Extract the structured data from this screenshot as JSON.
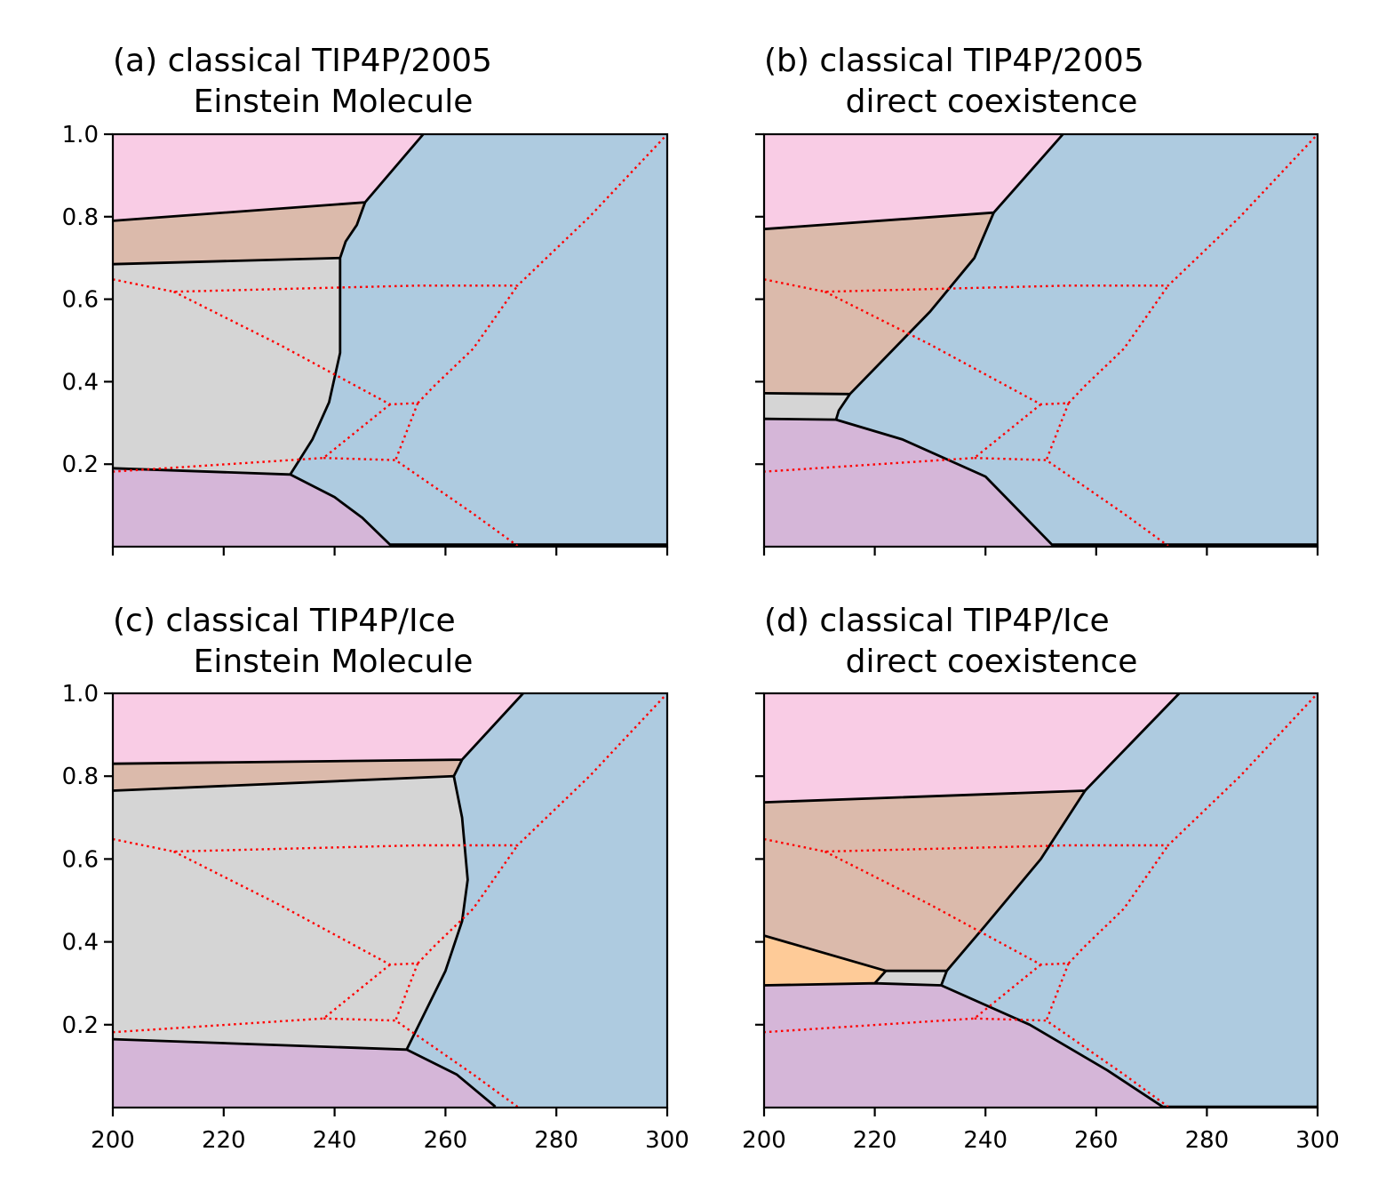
{
  "colors": {
    "pink": "#f9cce5",
    "tan": "#dbbaab",
    "gray": "#d5d5d5",
    "purple": "#d5b6d8",
    "blue": "#aecbe0",
    "orange": "#fecb98",
    "boundary": "#000000",
    "reference": "#ff0000"
  },
  "reference_lines": [
    [
      [
        200,
        0.648
      ],
      [
        211,
        0.618
      ],
      [
        240,
        0.628
      ],
      [
        255,
        0.633
      ],
      [
        273,
        0.633
      ],
      [
        286,
        0.8
      ],
      [
        300,
        1.0
      ]
    ],
    [
      [
        211,
        0.618
      ],
      [
        230,
        0.49
      ],
      [
        250,
        0.345
      ],
      [
        255,
        0.348
      ]
    ],
    [
      [
        255,
        0.348
      ],
      [
        258,
        0.39
      ],
      [
        265,
        0.48
      ],
      [
        273,
        0.633
      ]
    ],
    [
      [
        255,
        0.348
      ],
      [
        251,
        0.21
      ]
    ],
    [
      [
        250,
        0.345
      ],
      [
        238,
        0.215
      ],
      [
        200,
        0.182
      ]
    ],
    [
      [
        238,
        0.215
      ],
      [
        251,
        0.21
      ],
      [
        265,
        0.08
      ],
      [
        273,
        0.002
      ]
    ]
  ],
  "chart_data": [
    {
      "type": "phase-diagram",
      "title_line1": "(a) classical TIP4P/2005",
      "title_line2": "Einstein Molecule",
      "xlim": [
        200,
        300
      ],
      "ylim": [
        0,
        1.0
      ],
      "xticks": [
        200,
        220,
        240,
        260,
        280,
        300
      ],
      "yticks": [
        0.2,
        0.4,
        0.6,
        0.8,
        1.0
      ],
      "show_xticklabels": false,
      "show_yticklabels": true,
      "regions": [
        {
          "color": "pink",
          "points": [
            [
              200,
              1.0
            ],
            [
              256,
              1.0
            ],
            [
              245.5,
              0.835
            ],
            [
              200,
              0.79
            ]
          ]
        },
        {
          "color": "tan",
          "points": [
            [
              200,
              0.79
            ],
            [
              245.5,
              0.835
            ],
            [
              244,
              0.78
            ],
            [
              242,
              0.74
            ],
            [
              241,
              0.7
            ],
            [
              200,
              0.685
            ]
          ]
        },
        {
          "color": "gray",
          "points": [
            [
              200,
              0.685
            ],
            [
              241,
              0.7
            ],
            [
              241,
              0.47
            ],
            [
              239,
              0.35
            ],
            [
              236,
              0.26
            ],
            [
              232,
              0.175
            ],
            [
              200,
              0.19
            ]
          ]
        },
        {
          "color": "purple",
          "points": [
            [
              200,
              0.19
            ],
            [
              232,
              0.175
            ],
            [
              240,
              0.12
            ],
            [
              245,
              0.07
            ],
            [
              250,
              0.005
            ],
            [
              300,
              0.005
            ],
            [
              300,
              0
            ],
            [
              200,
              0
            ]
          ]
        },
        {
          "color": "blue",
          "points": [
            [
              256,
              1.0
            ],
            [
              300,
              1.0
            ],
            [
              300,
              0.005
            ],
            [
              250,
              0.005
            ],
            [
              245,
              0.07
            ],
            [
              240,
              0.12
            ],
            [
              232,
              0.175
            ],
            [
              236,
              0.26
            ],
            [
              239,
              0.35
            ],
            [
              241,
              0.47
            ],
            [
              241,
              0.7
            ],
            [
              242,
              0.74
            ],
            [
              244,
              0.78
            ],
            [
              245.5,
              0.835
            ]
          ]
        }
      ],
      "boundaries": [
        [
          [
            200,
            0.79
          ],
          [
            245.5,
            0.835
          ],
          [
            256,
            1.0
          ]
        ],
        [
          [
            200,
            0.685
          ],
          [
            241,
            0.7
          ]
        ],
        [
          [
            245.5,
            0.835
          ],
          [
            244,
            0.78
          ],
          [
            242,
            0.74
          ],
          [
            241,
            0.7
          ],
          [
            241,
            0.47
          ],
          [
            239,
            0.35
          ],
          [
            236,
            0.26
          ],
          [
            232,
            0.175
          ]
        ],
        [
          [
            200,
            0.19
          ],
          [
            232,
            0.175
          ],
          [
            240,
            0.12
          ],
          [
            245,
            0.07
          ],
          [
            250,
            0.005
          ],
          [
            300,
            0.005
          ]
        ]
      ]
    },
    {
      "type": "phase-diagram",
      "title_line1": "(b) classical TIP4P/2005",
      "title_line2": "direct coexistence",
      "xlim": [
        200,
        300
      ],
      "ylim": [
        0,
        1.0
      ],
      "xticks": [
        200,
        220,
        240,
        260,
        280,
        300
      ],
      "yticks": [
        0.2,
        0.4,
        0.6,
        0.8,
        1.0
      ],
      "show_xticklabels": false,
      "show_yticklabels": false,
      "regions": [
        {
          "color": "pink",
          "points": [
            [
              200,
              1.0
            ],
            [
              254,
              1.0
            ],
            [
              241.5,
              0.81
            ],
            [
              200,
              0.77
            ]
          ]
        },
        {
          "color": "tan",
          "points": [
            [
              200,
              0.77
            ],
            [
              241.5,
              0.81
            ],
            [
              238,
              0.7
            ],
            [
              230,
              0.57
            ],
            [
              215.5,
              0.37
            ],
            [
              200,
              0.372
            ]
          ]
        },
        {
          "color": "gray",
          "points": [
            [
              200,
              0.372
            ],
            [
              215.5,
              0.37
            ],
            [
              213.5,
              0.33
            ],
            [
              213,
              0.308
            ],
            [
              200,
              0.31
            ]
          ]
        },
        {
          "color": "purple",
          "points": [
            [
              200,
              0.31
            ],
            [
              213,
              0.308
            ],
            [
              225,
              0.26
            ],
            [
              240,
              0.17
            ],
            [
              252,
              0.005
            ],
            [
              300,
              0.005
            ],
            [
              300,
              0
            ],
            [
              200,
              0
            ]
          ]
        },
        {
          "color": "blue",
          "points": [
            [
              254,
              1.0
            ],
            [
              300,
              1.0
            ],
            [
              300,
              0.005
            ],
            [
              252,
              0.005
            ],
            [
              240,
              0.17
            ],
            [
              225,
              0.26
            ],
            [
              213,
              0.308
            ],
            [
              213.5,
              0.33
            ],
            [
              215.5,
              0.37
            ],
            [
              230,
              0.57
            ],
            [
              238,
              0.7
            ],
            [
              241.5,
              0.81
            ]
          ]
        }
      ],
      "boundaries": [
        [
          [
            200,
            0.77
          ],
          [
            241.5,
            0.81
          ],
          [
            254,
            1.0
          ]
        ],
        [
          [
            241.5,
            0.81
          ],
          [
            238,
            0.7
          ],
          [
            230,
            0.57
          ],
          [
            215.5,
            0.37
          ],
          [
            213.5,
            0.33
          ],
          [
            213,
            0.308
          ]
        ],
        [
          [
            200,
            0.372
          ],
          [
            215.5,
            0.37
          ]
        ],
        [
          [
            200,
            0.31
          ],
          [
            213,
            0.308
          ],
          [
            225,
            0.26
          ],
          [
            240,
            0.17
          ],
          [
            252,
            0.005
          ],
          [
            300,
            0.005
          ]
        ]
      ]
    },
    {
      "type": "phase-diagram",
      "title_line1": "(c) classical TIP4P/Ice",
      "title_line2": "Einstein Molecule",
      "xlim": [
        200,
        300
      ],
      "ylim": [
        0,
        1.0
      ],
      "xticks": [
        200,
        220,
        240,
        260,
        280,
        300
      ],
      "yticks": [
        0.2,
        0.4,
        0.6,
        0.8,
        1.0
      ],
      "show_xticklabels": true,
      "show_yticklabels": true,
      "regions": [
        {
          "color": "pink",
          "points": [
            [
              200,
              1.0
            ],
            [
              274,
              1.0
            ],
            [
              263,
              0.84
            ],
            [
              200,
              0.83
            ]
          ]
        },
        {
          "color": "tan",
          "points": [
            [
              200,
              0.83
            ],
            [
              263,
              0.84
            ],
            [
              261.5,
              0.8
            ],
            [
              200,
              0.765
            ]
          ]
        },
        {
          "color": "gray",
          "points": [
            [
              200,
              0.765
            ],
            [
              261.5,
              0.8
            ],
            [
              263,
              0.7
            ],
            [
              264,
              0.55
            ],
            [
              263,
              0.45
            ],
            [
              260,
              0.33
            ],
            [
              253,
              0.14
            ],
            [
              200,
              0.165
            ]
          ]
        },
        {
          "color": "purple",
          "points": [
            [
              200,
              0.165
            ],
            [
              253,
              0.14
            ],
            [
              262,
              0.08
            ],
            [
              269,
              0.002
            ],
            [
              300,
              0.002
            ],
            [
              300,
              0
            ],
            [
              200,
              0
            ]
          ]
        },
        {
          "color": "blue",
          "points": [
            [
              274,
              1.0
            ],
            [
              300,
              1.0
            ],
            [
              300,
              0.002
            ],
            [
              269,
              0.002
            ],
            [
              262,
              0.08
            ],
            [
              253,
              0.14
            ],
            [
              260,
              0.33
            ],
            [
              263,
              0.45
            ],
            [
              264,
              0.55
            ],
            [
              263,
              0.7
            ],
            [
              261.5,
              0.8
            ],
            [
              263,
              0.84
            ]
          ]
        }
      ],
      "boundaries": [
        [
          [
            200,
            0.83
          ],
          [
            263,
            0.84
          ],
          [
            274,
            1.0
          ]
        ],
        [
          [
            200,
            0.765
          ],
          [
            261.5,
            0.8
          ]
        ],
        [
          [
            263,
            0.84
          ],
          [
            261.5,
            0.8
          ],
          [
            263,
            0.7
          ],
          [
            264,
            0.55
          ],
          [
            263,
            0.45
          ],
          [
            260,
            0.33
          ],
          [
            253,
            0.14
          ]
        ],
        [
          [
            200,
            0.165
          ],
          [
            253,
            0.14
          ],
          [
            262,
            0.08
          ],
          [
            269,
            0.002
          ]
        ]
      ]
    },
    {
      "type": "phase-diagram",
      "title_line1": "(d) classical TIP4P/Ice",
      "title_line2": "direct coexistence",
      "xlim": [
        200,
        300
      ],
      "ylim": [
        0,
        1.0
      ],
      "xticks": [
        200,
        220,
        240,
        260,
        280,
        300
      ],
      "yticks": [
        0.2,
        0.4,
        0.6,
        0.8,
        1.0
      ],
      "show_xticklabels": true,
      "show_yticklabels": false,
      "regions": [
        {
          "color": "pink",
          "points": [
            [
              200,
              1.0
            ],
            [
              275,
              1.0
            ],
            [
              258,
              0.765
            ],
            [
              200,
              0.737
            ]
          ]
        },
        {
          "color": "tan",
          "points": [
            [
              200,
              0.737
            ],
            [
              258,
              0.765
            ],
            [
              250,
              0.6
            ],
            [
              240,
              0.44
            ],
            [
              233,
              0.33
            ],
            [
              222,
              0.33
            ],
            [
              200,
              0.415
            ]
          ]
        },
        {
          "color": "orange",
          "points": [
            [
              200,
              0.415
            ],
            [
              222,
              0.33
            ],
            [
              220,
              0.3
            ],
            [
              200,
              0.295
            ]
          ]
        },
        {
          "color": "gray",
          "points": [
            [
              222,
              0.33
            ],
            [
              233,
              0.33
            ],
            [
              232,
              0.295
            ],
            [
              220,
              0.3
            ]
          ]
        },
        {
          "color": "purple",
          "points": [
            [
              200,
              0.295
            ],
            [
              220,
              0.3
            ],
            [
              232,
              0.295
            ],
            [
              248,
              0.2
            ],
            [
              262,
              0.09
            ],
            [
              272,
              0.002
            ],
            [
              300,
              0.002
            ],
            [
              300,
              0
            ],
            [
              200,
              0
            ]
          ]
        },
        {
          "color": "blue",
          "points": [
            [
              275,
              1.0
            ],
            [
              300,
              1.0
            ],
            [
              300,
              0.002
            ],
            [
              272,
              0.002
            ],
            [
              262,
              0.09
            ],
            [
              248,
              0.2
            ],
            [
              232,
              0.295
            ],
            [
              233,
              0.33
            ],
            [
              240,
              0.44
            ],
            [
              250,
              0.6
            ],
            [
              258,
              0.765
            ]
          ]
        }
      ],
      "boundaries": [
        [
          [
            200,
            0.737
          ],
          [
            258,
            0.765
          ],
          [
            275,
            1.0
          ]
        ],
        [
          [
            258,
            0.765
          ],
          [
            250,
            0.6
          ],
          [
            240,
            0.44
          ],
          [
            233,
            0.33
          ],
          [
            232,
            0.295
          ]
        ],
        [
          [
            200,
            0.415
          ],
          [
            222,
            0.33
          ],
          [
            233,
            0.33
          ]
        ],
        [
          [
            222,
            0.33
          ],
          [
            220,
            0.3
          ]
        ],
        [
          [
            200,
            0.295
          ],
          [
            220,
            0.3
          ],
          [
            232,
            0.295
          ],
          [
            248,
            0.2
          ],
          [
            262,
            0.09
          ],
          [
            272,
            0.002
          ],
          [
            300,
            0.002
          ]
        ]
      ]
    }
  ]
}
